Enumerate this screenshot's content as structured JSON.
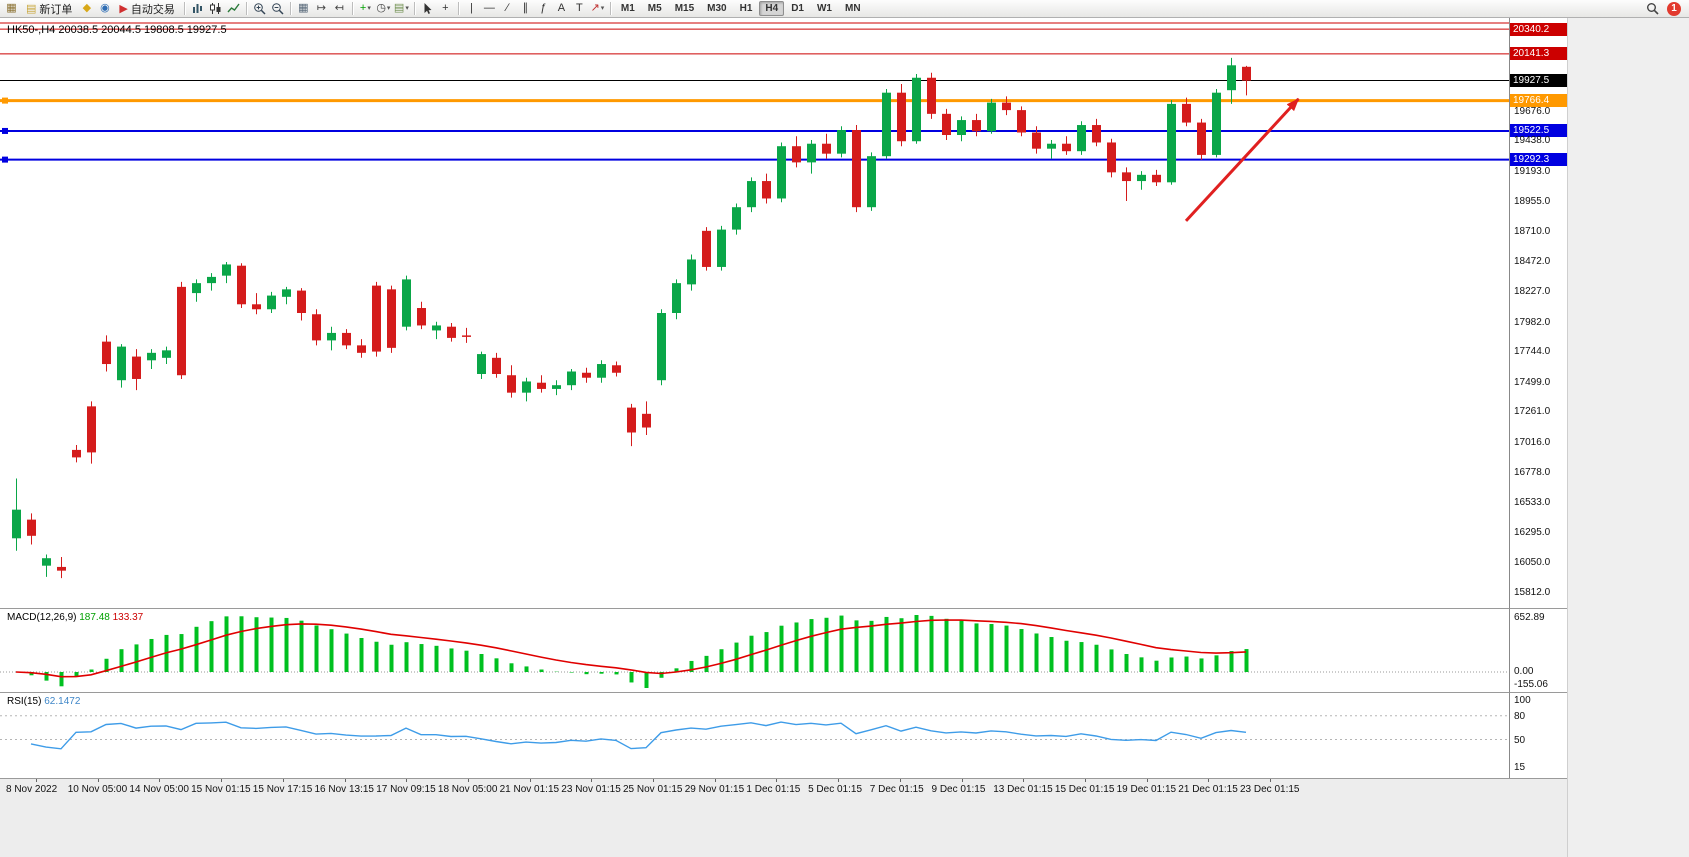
{
  "toolbar": {
    "active_timeframe": "H4",
    "dropdown_caret": "▾",
    "items": [
      {
        "type": "icon",
        "name": "new-chart",
        "glyph": "▦",
        "color": "#8a7030"
      },
      {
        "type": "button",
        "name": "new-order",
        "glyph": "▤",
        "glyph_color": "#c8a63a",
        "label": "新订单"
      },
      {
        "type": "icon",
        "name": "metaeditor",
        "glyph": "◆",
        "color": "#d8a818"
      },
      {
        "type": "icon",
        "name": "navigator",
        "glyph": "◉",
        "color": "#2e6db4"
      },
      {
        "type": "button",
        "name": "auto-trading",
        "glyph": "▶",
        "glyph_color": "#d03030",
        "label": "自动交易"
      },
      {
        "type": "sep"
      },
      {
        "type": "svg",
        "name": "bar-chart"
      },
      {
        "type": "svg",
        "name": "candle-chart"
      },
      {
        "type": "svg",
        "name": "line-chart"
      },
      {
        "type": "sep"
      },
      {
        "type": "svg",
        "name": "zoom-in"
      },
      {
        "type": "svg",
        "name": "zoom-out"
      },
      {
        "type": "sep"
      },
      {
        "type": "icon",
        "name": "tile-windows",
        "glyph": "▦",
        "color": "#556677"
      },
      {
        "type": "icon",
        "name": "auto-scroll",
        "glyph": "↦",
        "color": "#444444"
      },
      {
        "type": "icon",
        "name": "chart-shift",
        "glyph": "↤",
        "color": "#444444"
      },
      {
        "type": "sep"
      },
      {
        "type": "icon",
        "name": "indicators",
        "glyph": "+",
        "color": "#00a000",
        "dropdown": true
      },
      {
        "type": "icon",
        "name": "periods",
        "glyph": "◷",
        "color": "#444444",
        "dropdown": true
      },
      {
        "type": "icon",
        "name": "templates",
        "glyph": "▤",
        "color": "#6f8f4f",
        "dropdown": true
      },
      {
        "type": "sep"
      },
      {
        "type": "svg",
        "name": "cursor"
      },
      {
        "type": "icon",
        "name": "crosshair",
        "glyph": "+",
        "color": "#333333"
      },
      {
        "type": "sep"
      },
      {
        "type": "icon",
        "name": "vertical-line",
        "glyph": "|",
        "color": "#333333"
      },
      {
        "type": "icon",
        "name": "horizontal-line",
        "glyph": "—",
        "color": "#333333"
      },
      {
        "type": "icon",
        "name": "trend-line",
        "glyph": "∕",
        "color": "#333333"
      },
      {
        "type": "icon",
        "name": "equidistant-channel",
        "glyph": "∥",
        "color": "#333333"
      },
      {
        "type": "icon",
        "name": "fibonacci",
        "glyph": "ƒ",
        "color": "#333333"
      },
      {
        "type": "icon",
        "name": "text",
        "glyph": "A",
        "color": "#333333"
      },
      {
        "type": "icon",
        "name": "text-label",
        "glyph": "T",
        "color": "#333333"
      },
      {
        "type": "icon",
        "name": "arrows",
        "glyph": "↗",
        "color": "#c03030",
        "dropdown": true
      },
      {
        "type": "sep"
      },
      {
        "type": "tf",
        "label": "M1"
      },
      {
        "type": "tf",
        "label": "M5"
      },
      {
        "type": "tf",
        "label": "M15"
      },
      {
        "type": "tf",
        "label": "M30"
      },
      {
        "type": "tf",
        "label": "H1"
      },
      {
        "type": "tf",
        "label": "H4"
      },
      {
        "type": "tf",
        "label": "D1"
      },
      {
        "type": "tf",
        "label": "W1"
      },
      {
        "type": "tf",
        "label": "MN"
      },
      {
        "type": "spacer"
      },
      {
        "type": "svg",
        "name": "search"
      },
      {
        "type": "badge",
        "name": "notification-badge",
        "label": "1"
      }
    ]
  },
  "chart": {
    "title": "HK50-,H4 20038.5 20044.5 19808.5 19927.5",
    "colors": {
      "bull": "#0aa648",
      "bear": "#d41c1c"
    }
  },
  "macd": {
    "name": "MACD(12,26,9)",
    "value_main": "187.48",
    "value_signal": "133.37",
    "scale_labels": [
      "652.89",
      "0.00",
      "-155.06"
    ]
  },
  "rsi": {
    "name": "RSI(15)",
    "value": "62.1472",
    "scale_labels": [
      "100",
      "80",
      "50",
      "15"
    ]
  },
  "chart_data": {
    "type": "candlestick",
    "symbol_timeframe": "HK50-,H4",
    "ohlc_current": {
      "open": 20038.5,
      "high": 20044.5,
      "low": 19808.5,
      "close": 19927.5
    },
    "horizontal_lines": [
      {
        "price": 20390.0,
        "color": "#cc0000",
        "width": 1,
        "label": ""
      },
      {
        "price": 20340.2,
        "color": "#cc0000",
        "width": 1,
        "label": "20340.2"
      },
      {
        "price": 20141.3,
        "color": "#cc0000",
        "width": 1,
        "label": "20141.3"
      },
      {
        "price": 19927.5,
        "color": "#000000",
        "width": 1,
        "label": "19927.5"
      },
      {
        "price": 19766.4,
        "color": "#ff9900",
        "width": 3,
        "label": "19766.4"
      },
      {
        "price": 19522.5,
        "color": "#0000e0",
        "width": 2,
        "label": "19522.5"
      },
      {
        "price": 19292.3,
        "color": "#0000e0",
        "width": 2,
        "label": "19292.3"
      }
    ],
    "price_axis_ticks": [
      19676.0,
      19438.0,
      19193.0,
      18955.0,
      18710.0,
      18472.0,
      18227.0,
      17982.0,
      17744.0,
      17499.0,
      17261.0,
      17016.0,
      16778.0,
      16533.0,
      16295.0,
      16050.0,
      15812.0
    ],
    "time_labels": [
      "8 Nov 2022",
      "10 Nov 05:00",
      "14 Nov 05:00",
      "15 Nov 01:15",
      "15 Nov 17:15",
      "16 Nov 13:15",
      "17 Nov 09:15",
      "18 Nov 05:00",
      "21 Nov 01:15",
      "23 Nov 01:15",
      "25 Nov 01:15",
      "29 Nov 01:15",
      "1 Dec 01:15",
      "5 Dec 01:15",
      "7 Dec 01:15",
      "9 Dec 01:15",
      "13 Dec 01:15",
      "15 Dec 01:15",
      "19 Dec 01:15",
      "21 Dec 01:15",
      "23 Dec 01:15"
    ],
    "candles": [
      [
        16250,
        16730,
        16150,
        16480
      ],
      [
        16400,
        16450,
        16200,
        16270
      ],
      [
        16030,
        16120,
        15940,
        16090
      ],
      [
        16020,
        16100,
        15930,
        15990
      ],
      [
        16960,
        17000,
        16860,
        16900
      ],
      [
        17310,
        17350,
        16850,
        16940
      ],
      [
        17830,
        17880,
        17590,
        17650
      ],
      [
        17520,
        17810,
        17460,
        17790
      ],
      [
        17710,
        17770,
        17440,
        17530
      ],
      [
        17680,
        17770,
        17610,
        17740
      ],
      [
        17700,
        17790,
        17650,
        17760
      ],
      [
        18270,
        18310,
        17530,
        17560
      ],
      [
        18220,
        18330,
        18150,
        18300
      ],
      [
        18300,
        18380,
        18240,
        18350
      ],
      [
        18360,
        18470,
        18300,
        18450
      ],
      [
        18440,
        18460,
        18100,
        18130
      ],
      [
        18130,
        18220,
        18050,
        18090
      ],
      [
        18090,
        18230,
        18060,
        18200
      ],
      [
        18190,
        18270,
        18130,
        18250
      ],
      [
        18240,
        18260,
        18000,
        18060
      ],
      [
        18050,
        18090,
        17800,
        17840
      ],
      [
        17840,
        17950,
        17760,
        17900
      ],
      [
        17900,
        17930,
        17770,
        17800
      ],
      [
        17800,
        17850,
        17700,
        17740
      ],
      [
        18280,
        18310,
        17710,
        17750
      ],
      [
        18250,
        18280,
        17740,
        17780
      ],
      [
        17950,
        18360,
        17920,
        18330
      ],
      [
        18100,
        18150,
        17930,
        17960
      ],
      [
        17920,
        17990,
        17850,
        17960
      ],
      [
        17950,
        17980,
        17830,
        17860
      ],
      [
        17880,
        17940,
        17820,
        17870
      ],
      [
        17570,
        17750,
        17530,
        17730
      ],
      [
        17700,
        17740,
        17540,
        17570
      ],
      [
        17560,
        17640,
        17380,
        17420
      ],
      [
        17420,
        17540,
        17350,
        17510
      ],
      [
        17500,
        17560,
        17420,
        17450
      ],
      [
        17450,
        17520,
        17400,
        17480
      ],
      [
        17480,
        17610,
        17440,
        17590
      ],
      [
        17580,
        17620,
        17500,
        17540
      ],
      [
        17540,
        17680,
        17500,
        17650
      ],
      [
        17640,
        17670,
        17550,
        17580
      ],
      [
        17300,
        17330,
        16990,
        17100
      ],
      [
        17250,
        17350,
        17080,
        17140
      ],
      [
        17520,
        18090,
        17480,
        18060
      ],
      [
        18060,
        18330,
        18010,
        18300
      ],
      [
        18290,
        18530,
        18240,
        18490
      ],
      [
        18720,
        18750,
        18400,
        18430
      ],
      [
        18430,
        18760,
        18400,
        18730
      ],
      [
        18730,
        18940,
        18690,
        18910
      ],
      [
        18910,
        19150,
        18870,
        19120
      ],
      [
        19120,
        19180,
        18940,
        18980
      ],
      [
        18980,
        19430,
        18950,
        19400
      ],
      [
        19400,
        19480,
        19230,
        19270
      ],
      [
        19270,
        19450,
        19180,
        19420
      ],
      [
        19420,
        19500,
        19300,
        19340
      ],
      [
        19340,
        19560,
        19310,
        19530
      ],
      [
        19530,
        19570,
        18870,
        18910
      ],
      [
        18910,
        19350,
        18880,
        19320
      ],
      [
        19320,
        19860,
        19300,
        19830
      ],
      [
        19830,
        19900,
        19400,
        19440
      ],
      [
        19440,
        19980,
        19420,
        19950
      ],
      [
        19950,
        19990,
        19620,
        19660
      ],
      [
        19660,
        19700,
        19450,
        19490
      ],
      [
        19490,
        19640,
        19440,
        19610
      ],
      [
        19610,
        19660,
        19480,
        19520
      ],
      [
        19520,
        19780,
        19500,
        19750
      ],
      [
        19750,
        19800,
        19650,
        19690
      ],
      [
        19690,
        19720,
        19480,
        19510
      ],
      [
        19510,
        19560,
        19340,
        19380
      ],
      [
        19380,
        19450,
        19300,
        19420
      ],
      [
        19420,
        19480,
        19330,
        19360
      ],
      [
        19360,
        19600,
        19330,
        19570
      ],
      [
        19570,
        19620,
        19400,
        19430
      ],
      [
        19430,
        19460,
        19150,
        19190
      ],
      [
        19190,
        19230,
        18960,
        19120
      ],
      [
        19120,
        19200,
        19050,
        19170
      ],
      [
        19170,
        19210,
        19080,
        19110
      ],
      [
        19110,
        19770,
        19090,
        19740
      ],
      [
        19740,
        19790,
        19560,
        19590
      ],
      [
        19590,
        19620,
        19290,
        19330
      ],
      [
        19330,
        19860,
        19310,
        19830
      ],
      [
        19850,
        20110,
        19740,
        20050
      ],
      [
        20038,
        20045,
        19808,
        19927
      ]
    ],
    "annotations": [
      {
        "type": "arrow",
        "color": "#e02020",
        "from_bar": 78,
        "from_price": 18800,
        "to_bar": 85.5,
        "to_price": 19780
      }
    ]
  }
}
